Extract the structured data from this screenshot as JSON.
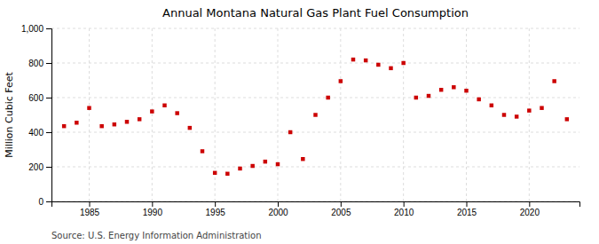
{
  "chart_data": {
    "type": "scatter",
    "title": "Annual Montana Natural Gas Plant Fuel Consumption",
    "ylabel": "Million Cubic Feet",
    "annotations": [
      "Source: U.S. Energy Information Administration"
    ],
    "x": [
      1983,
      1984,
      1985,
      1986,
      1987,
      1988,
      1989,
      1990,
      1991,
      1992,
      1993,
      1994,
      1995,
      1996,
      1997,
      1998,
      1999,
      2000,
      2001,
      2002,
      2003,
      2004,
      2005,
      2006,
      2007,
      2008,
      2009,
      2010,
      2011,
      2012,
      2013,
      2014,
      2015,
      2016,
      2017,
      2018,
      2019,
      2020,
      2021,
      2022,
      2023
    ],
    "values": [
      435,
      455,
      540,
      435,
      445,
      460,
      475,
      520,
      555,
      510,
      425,
      290,
      165,
      160,
      190,
      205,
      230,
      215,
      400,
      245,
      500,
      600,
      695,
      820,
      815,
      790,
      770,
      800,
      600,
      610,
      645,
      660,
      640,
      590,
      555,
      500,
      490,
      525,
      540,
      695,
      475
    ],
    "color": "#cc0000",
    "marker": "square",
    "xlim": [
      1982,
      2024
    ],
    "xticks": [
      1985,
      1990,
      1995,
      2000,
      2005,
      2010,
      2015,
      2020
    ],
    "ylim": [
      0,
      1000
    ],
    "yticks": [
      0,
      200,
      400,
      600,
      800,
      {
        "value": 1000,
        "label": "1,000"
      }
    ],
    "grid": true
  }
}
